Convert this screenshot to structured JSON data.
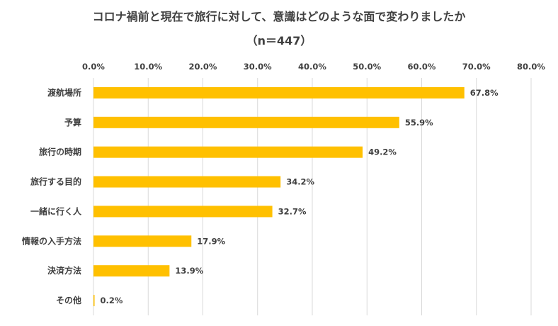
{
  "chart_data": {
    "type": "bar",
    "orientation": "horizontal",
    "title": "コロナ禍前と現在で旅行に対して、意識はどのような面で変わりましたか",
    "subtitle": "（n＝447）",
    "categories": [
      "渡航場所",
      "予算",
      "旅行の時期",
      "旅行する目的",
      "一緒に行く人",
      "情報の入手方法",
      "決済方法",
      "その他"
    ],
    "values": [
      67.8,
      55.9,
      49.2,
      34.2,
      32.7,
      17.9,
      13.9,
      0.2
    ],
    "data_labels": [
      "67.8%",
      "55.9%",
      "49.2%",
      "34.2%",
      "32.7%",
      "17.9%",
      "13.9%",
      "0.2%"
    ],
    "xlim": [
      0,
      80
    ],
    "ticks": [
      0,
      10,
      20,
      30,
      40,
      50,
      60,
      70,
      80
    ],
    "tick_labels": [
      "0.0%",
      "10.0%",
      "20.0%",
      "30.0%",
      "40.0%",
      "50.0%",
      "60.0%",
      "70.0%",
      "80.0%"
    ],
    "axis_position": "top",
    "grid": true,
    "bar_color": "#ffc000",
    "xlabel": "",
    "ylabel": ""
  }
}
